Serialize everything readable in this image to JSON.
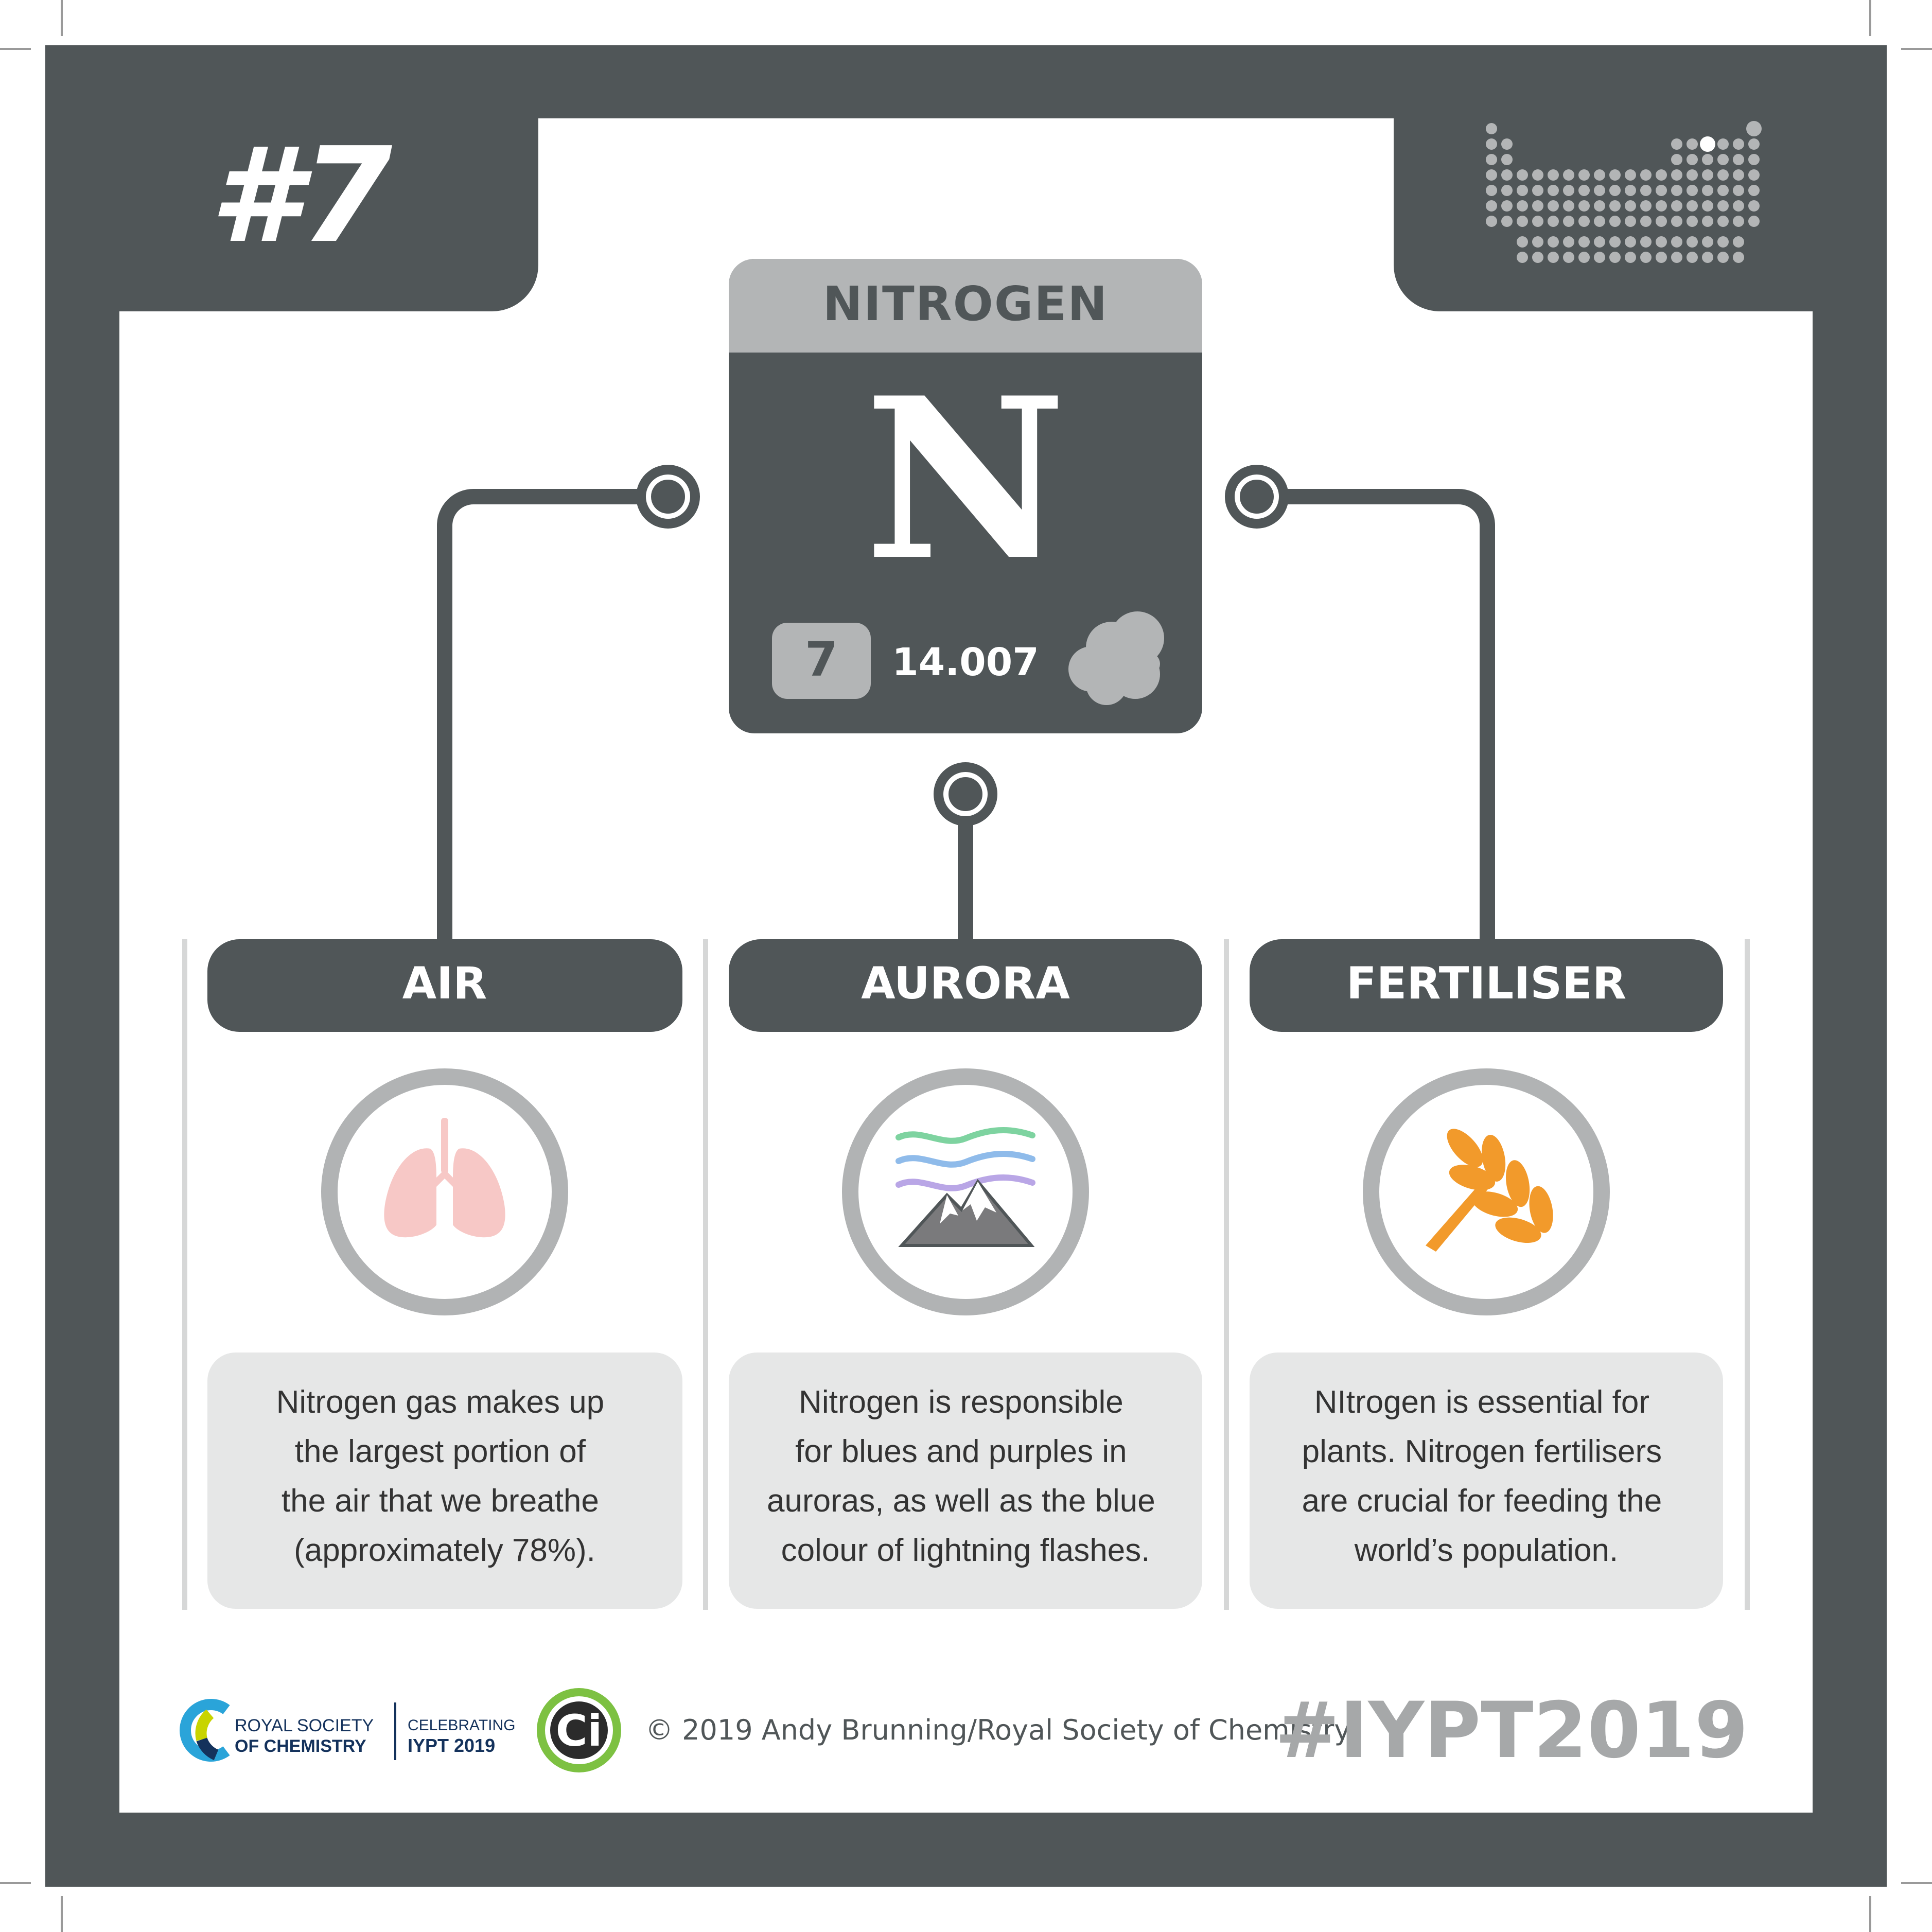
{
  "number_badge": "#7",
  "element": {
    "name": "NITROGEN",
    "symbol": "N",
    "atomic_number": "7",
    "atomic_mass": "14.007",
    "state_icon": "gas-cloud-icon"
  },
  "uses": [
    {
      "title": "AIR",
      "icon": "lungs-icon",
      "lines": [
        "Nitrogen gas makes up",
        "the largest portion of",
        "the air that we breathe",
        "(approximately 78%)."
      ]
    },
    {
      "title": "AURORA",
      "icon": "aurora-mountain-icon",
      "lines": [
        "Nitrogen is responsible",
        "for blues and purples in",
        "auroras, as well as the blue",
        "colour of lightning flashes."
      ]
    },
    {
      "title": "FERTILISER",
      "icon": "wheat-icon",
      "lines": [
        "NItrogen is essential for",
        "plants. Nitrogen fertilisers",
        "are crucial for feeding the",
        "world’s population."
      ]
    }
  ],
  "footer": {
    "rsc_line1": "ROYAL SOCIETY",
    "rsc_line2": "OF CHEMISTRY",
    "celebrating_line1": "CELEBRATING",
    "celebrating_line2": "IYPT 2019",
    "ci_logo": "Ci",
    "copyright": "© 2019 Andy Brunning/Royal Society of Chemistry",
    "hashtag": "#IYPT2019"
  },
  "colors": {
    "frame": "#505658",
    "panel": "#ffffff",
    "header_band": "#b3b5b6",
    "text_box": "#e6e7e7",
    "ring": "#b1b3b4",
    "divider": "#d6d7d7",
    "lungs": "#f7c8c6",
    "wheat": "#f29a2b",
    "aurora_green": "#7ed3a0",
    "aurora_blue": "#8fbbea",
    "aurora_purple": "#b9a6e6",
    "ci_green": "#7dc142",
    "hashtag": "#a6a8a9"
  }
}
